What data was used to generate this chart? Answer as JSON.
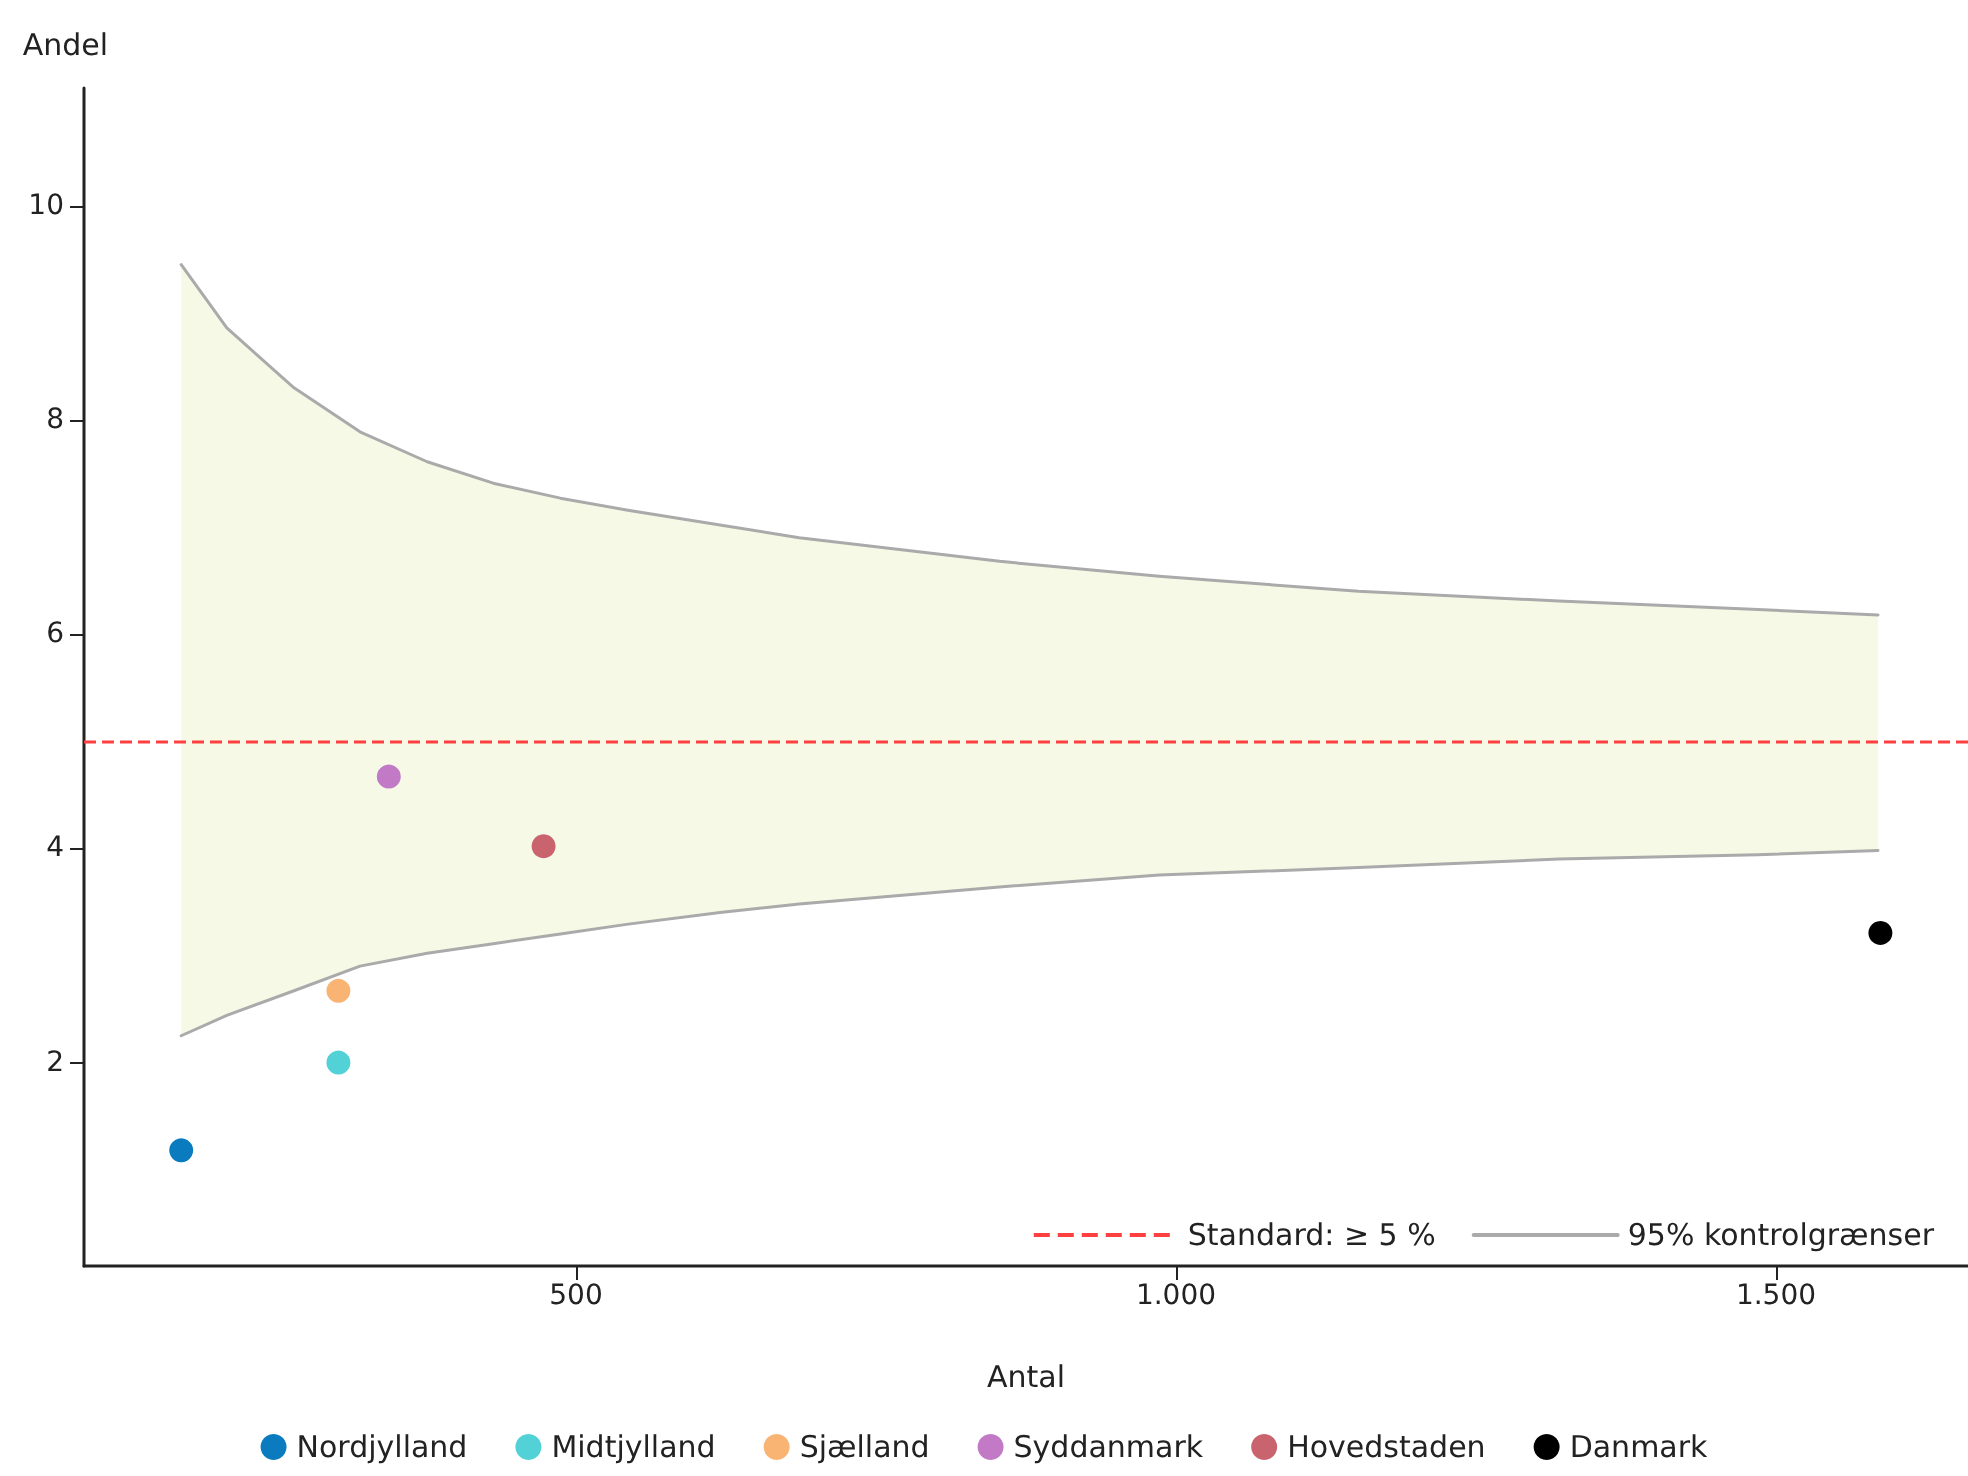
{
  "chart_data": {
    "type": "scatter",
    "xlabel": "Antal",
    "ylabel": "Andel",
    "xlim": [
      90,
      1660
    ],
    "xticks": [
      500,
      {
        "value": 1000,
        "label": "1.000"
      },
      {
        "value": 1500,
        "label": "1.500"
      }
    ],
    "ylim": [
      0.1,
      11.1
    ],
    "yticks": [
      2,
      4,
      6,
      8,
      10
    ],
    "legend": "bottom",
    "marker": "circle",
    "ref_lines": [
      {
        "axis": "y",
        "value": 5,
        "label": "Standard: ≥ 5 %",
        "color": "#ff4040",
        "line_style": "dashed"
      }
    ],
    "series": [
      {
        "type": "line",
        "color": "#f7f9e7",
        "x": [
          171,
          209,
          265,
          320,
          376,
          431,
          487,
          542,
          620,
          686,
          853,
          986,
          1152,
          1319,
          1485,
          1585
        ],
        "values": [
          null,
          null,
          null,
          null,
          null,
          null,
          null,
          null,
          null,
          null,
          null,
          null,
          null,
          null,
          null,
          null
        ],
        "lower": [
          2.25,
          2.44,
          2.67,
          2.9,
          3.02,
          3.11,
          3.2,
          3.29,
          3.4,
          3.48,
          3.64,
          3.75,
          3.82,
          3.9,
          3.94,
          3.98
        ],
        "upper": [
          9.45,
          8.86,
          8.3,
          7.89,
          7.61,
          7.41,
          7.27,
          7.16,
          7.02,
          6.9,
          6.68,
          6.54,
          6.4,
          6.31,
          6.23,
          6.18
        ]
      },
      {
        "name": "95% kontrolgrænser",
        "type": "line",
        "marker": "none",
        "color": "#aaaaaa",
        "x": [
          171,
          209,
          265,
          320,
          376,
          431,
          487,
          542,
          620,
          686,
          853,
          986,
          1152,
          1319,
          1485,
          1585
        ],
        "values": [
          9.45,
          8.86,
          8.3,
          7.89,
          7.61,
          7.41,
          7.27,
          7.16,
          7.02,
          6.9,
          6.68,
          6.54,
          6.4,
          6.31,
          6.23,
          6.18
        ]
      },
      {
        "type": "line",
        "marker": "none",
        "color": "#aaaaaa",
        "x": [
          171,
          209,
          265,
          320,
          376,
          431,
          487,
          542,
          620,
          686,
          853,
          986,
          1152,
          1319,
          1485,
          1585
        ],
        "values": [
          2.25,
          2.44,
          2.67,
          2.9,
          3.02,
          3.11,
          3.2,
          3.29,
          3.4,
          3.48,
          3.64,
          3.75,
          3.82,
          3.9,
          3.94,
          3.98
        ]
      },
      {
        "name": "Nordjylland",
        "color": "#0a7bbf",
        "x": [
          171
        ],
        "values": [
          1.18
        ]
      },
      {
        "name": "Midtjylland",
        "color": "#52d2d6",
        "x": [
          302
        ],
        "values": [
          2.0
        ]
      },
      {
        "name": "Sjælland",
        "color": "#f9b474",
        "x": [
          302
        ],
        "values": [
          2.67
        ]
      },
      {
        "name": "Syddanmark",
        "color": "#c27ac6",
        "x": [
          344
        ],
        "values": [
          4.67
        ]
      },
      {
        "name": "Hovedstaden",
        "color": "#c9646e",
        "x": [
          473
        ],
        "values": [
          4.02
        ]
      },
      {
        "name": "Danmark",
        "color": "#000000",
        "x": [
          1587
        ],
        "values": [
          3.21
        ]
      }
    ]
  }
}
